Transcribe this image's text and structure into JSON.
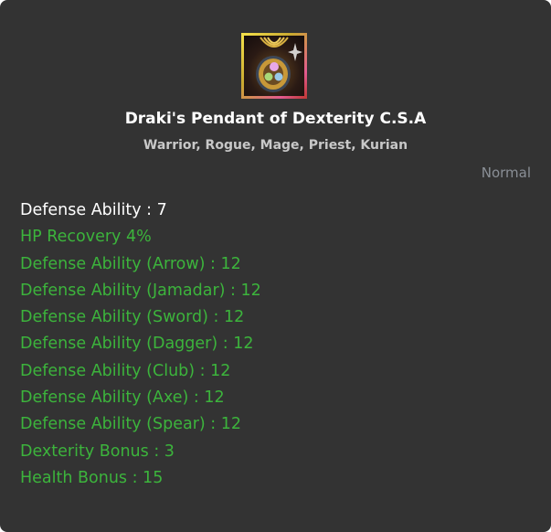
{
  "item": {
    "icon": "pendant-icon",
    "name": "Draki's Pendant of Dexterity C.S.A",
    "classes": "Warrior, Rogue, Mage, Priest, Kurian",
    "grade": "Normal"
  },
  "stats": [
    {
      "text": "Defense Ability : 7",
      "type": "base"
    },
    {
      "text": "HP Recovery 4%",
      "type": "bonus"
    },
    {
      "text": "Defense Ability (Arrow) : 12",
      "type": "bonus"
    },
    {
      "text": "Defense Ability (Jamadar) : 12",
      "type": "bonus"
    },
    {
      "text": "Defense Ability (Sword) : 12",
      "type": "bonus"
    },
    {
      "text": "Defense Ability (Dagger) : 12",
      "type": "bonus"
    },
    {
      "text": "Defense Ability (Club) : 12",
      "type": "bonus"
    },
    {
      "text": "Defense Ability (Axe) : 12",
      "type": "bonus"
    },
    {
      "text": "Defense Ability (Spear) : 12",
      "type": "bonus"
    },
    {
      "text": "Dexterity Bonus : 3",
      "type": "bonus"
    },
    {
      "text": "Health Bonus : 15",
      "type": "bonus"
    }
  ],
  "colors": {
    "background": "#333333",
    "base_stat": "#ffffff",
    "bonus_stat": "#3cb43c",
    "grade": "#8a8f96"
  }
}
